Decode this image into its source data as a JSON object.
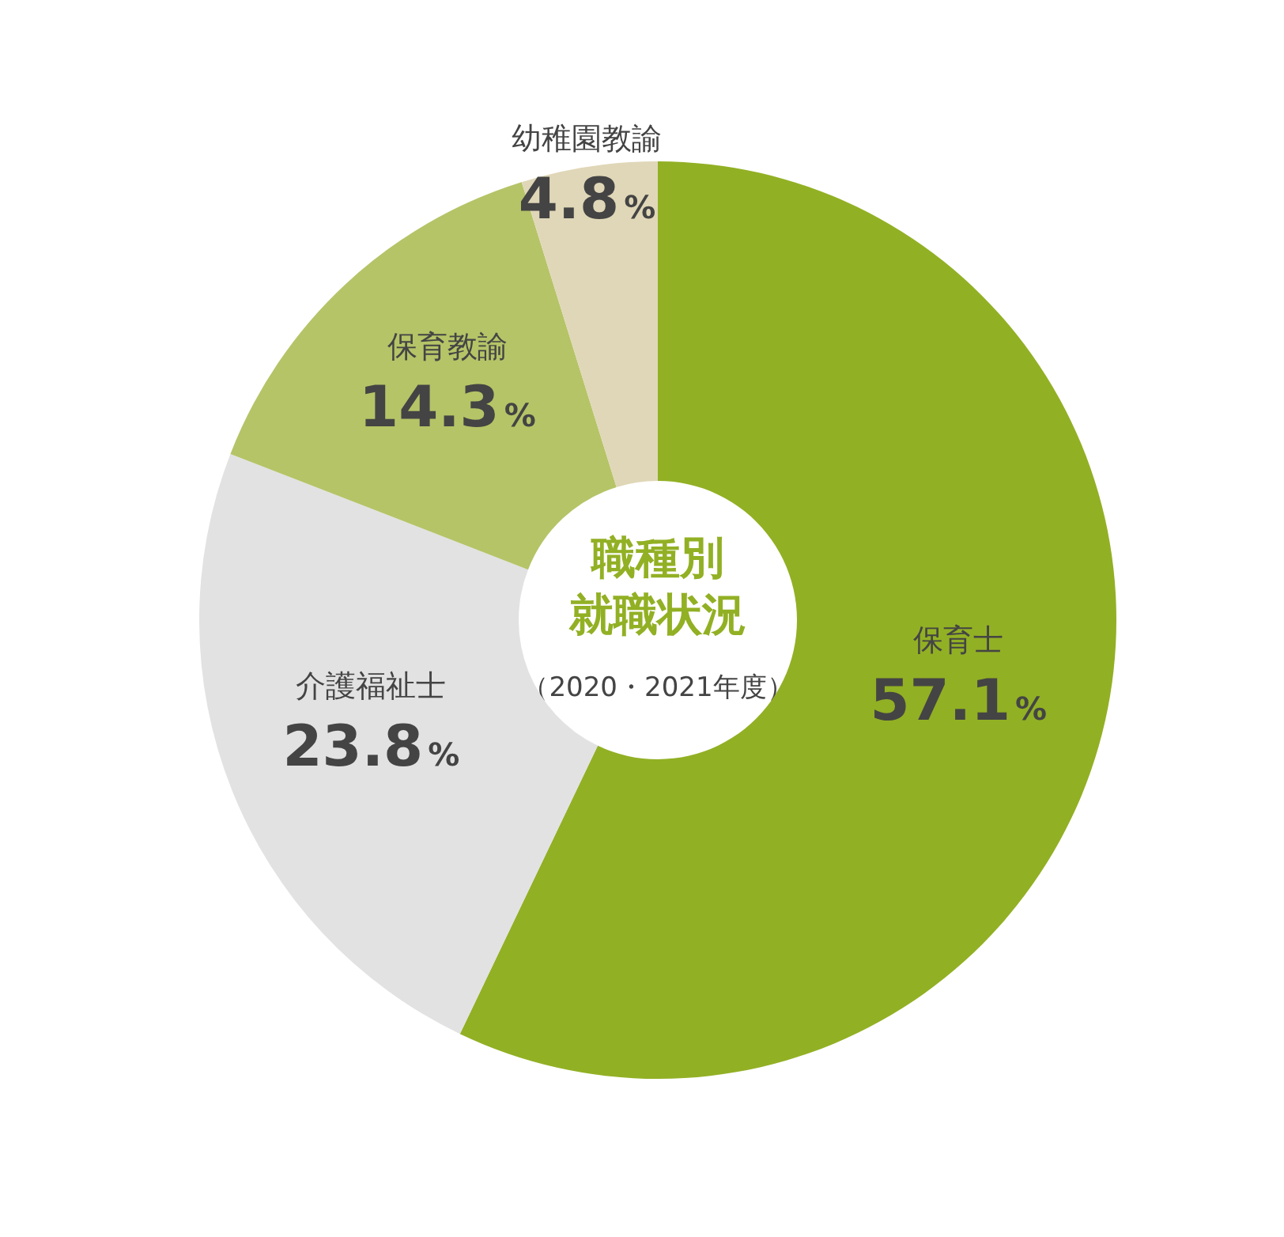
{
  "chart_data": {
    "type": "donut",
    "title": "職種別就職状況",
    "subtitle": "（2020・2021年度）",
    "categories": [
      "保育士",
      "介護福祉士",
      "保育教諭",
      "幼稚園教諭"
    ],
    "values": [
      57.1,
      23.8,
      14.3,
      4.8
    ],
    "colors": [
      "#92b024",
      "#e2e2e2",
      "#b5c467",
      "#e0d7b8"
    ],
    "value_labels": [
      "57.1%",
      "23.8%",
      "14.3%",
      "4.8%"
    ]
  }
}
